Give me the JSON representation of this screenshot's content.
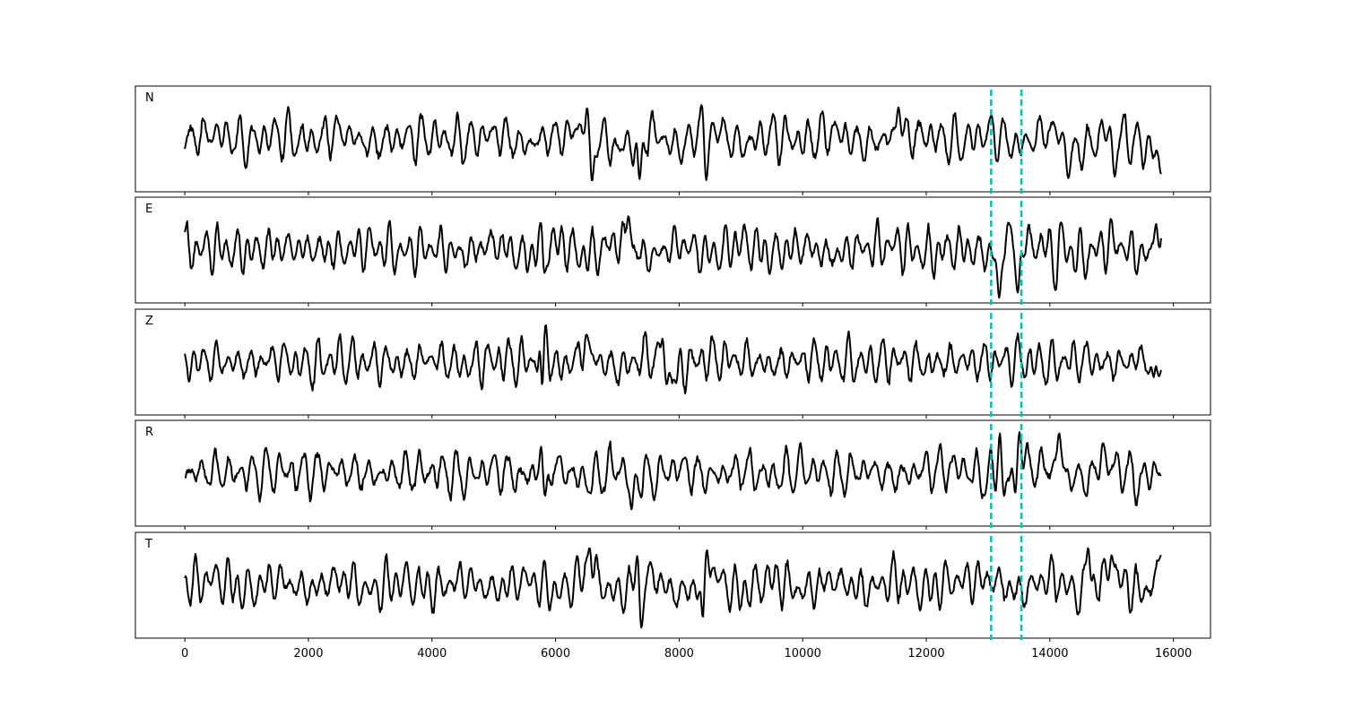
{
  "chart_data": {
    "type": "line",
    "title": "",
    "xlabel": "",
    "ylabel": "",
    "xlim": [
      -800,
      16600
    ],
    "x_ticks": [
      0,
      2000,
      4000,
      6000,
      8000,
      10000,
      12000,
      14000,
      16000
    ],
    "x_tick_labels": [
      "0",
      "2000",
      "4000",
      "6000",
      "8000",
      "10000",
      "12000",
      "14000",
      "16000"
    ],
    "signal_x_range": [
      0,
      15800
    ],
    "markers": [
      13050,
      13540
    ],
    "grid": false,
    "colors": {
      "trace": "#000000",
      "marker": "#00bfbf"
    },
    "panels": [
      {
        "label": "N",
        "ylim": [
          -1,
          1
        ],
        "events": [
          {
            "x": 6520,
            "y": 0.72
          },
          {
            "x": 6590,
            "y": -0.85
          },
          {
            "x": 7360,
            "y": -0.8
          },
          {
            "x": 8380,
            "y": 0.83
          },
          {
            "x": 8440,
            "y": -0.82
          },
          {
            "x": 11550,
            "y": 0.63
          },
          {
            "x": 14300,
            "y": -0.78
          },
          {
            "x": 15050,
            "y": -0.75
          },
          {
            "x": 15800,
            "y": -0.7
          }
        ],
        "series": [
          {
            "x": [
              0,
              500,
              1000,
              1500,
              2000,
              2500,
              3000,
              3500,
              4000,
              4500,
              5000,
              5500,
              6000,
              6500,
              7000,
              7500,
              8000,
              8500,
              9000,
              9500,
              10000,
              10500,
              11000,
              11500,
              12000,
              12500,
              13000,
              13500,
              14000,
              14500,
              15000,
              15500,
              15800
            ],
            "y": [
              0.0,
              0.3,
              -0.2,
              0.25,
              -0.1,
              0.35,
              -0.25,
              0.05,
              0.1,
              -0.15,
              0.3,
              -0.3,
              0.15,
              0.6,
              -0.5,
              0.4,
              -0.45,
              0.7,
              -0.3,
              0.2,
              -0.1,
              0.35,
              -0.25,
              0.1,
              0.2,
              -0.2,
              0.3,
              -0.35,
              0.5,
              -0.6,
              0.5,
              -0.4,
              -0.7
            ]
          }
        ]
      },
      {
        "label": "E",
        "ylim": [
          -1,
          1
        ],
        "events": [
          {
            "x": 5800,
            "y": -0.82
          },
          {
            "x": 5760,
            "y": 0.55
          },
          {
            "x": 7180,
            "y": 0.68
          },
          {
            "x": 13180,
            "y": -0.95
          },
          {
            "x": 13330,
            "y": 0.55
          },
          {
            "x": 13480,
            "y": -0.85
          },
          {
            "x": 14100,
            "y": -0.85
          },
          {
            "x": 14180,
            "y": 0.55
          },
          {
            "x": 15720,
            "y": 0.52
          }
        ],
        "series": [
          {
            "x": [
              0,
              500,
              1000,
              1500,
              2000,
              2500,
              3000,
              3500,
              4000,
              4500,
              5000,
              5500,
              6000,
              6500,
              7000,
              7500,
              8000,
              8500,
              9000,
              9500,
              10000,
              10500,
              11000,
              11500,
              12000,
              12500,
              13000,
              13500,
              14000,
              14500,
              15000,
              15500,
              15800
            ],
            "y": [
              0.0,
              0.1,
              -0.1,
              0.15,
              0.05,
              -0.1,
              0.2,
              -0.15,
              0.1,
              -0.2,
              0.3,
              -0.35,
              0.4,
              -0.3,
              0.45,
              -0.4,
              0.3,
              -0.25,
              0.35,
              -0.2,
              0.2,
              -0.3,
              0.15,
              0.25,
              -0.2,
              0.1,
              -0.2,
              0.4,
              0.2,
              -0.35,
              0.4,
              -0.3,
              -0.25
            ]
          }
        ]
      },
      {
        "label": "Z",
        "ylim": [
          -1,
          1
        ],
        "events": [
          {
            "x": 5770,
            "y": 0.82
          },
          {
            "x": 5800,
            "y": -1.0
          },
          {
            "x": 5840,
            "y": 0.75
          },
          {
            "x": 6500,
            "y": 0.55
          },
          {
            "x": 7740,
            "y": 0.6
          },
          {
            "x": 7800,
            "y": -0.45
          },
          {
            "x": 7950,
            "y": -0.42
          },
          {
            "x": 15680,
            "y": -0.3
          }
        ],
        "series": [
          {
            "x": [
              0,
              500,
              1000,
              1500,
              2000,
              2500,
              3000,
              3500,
              4000,
              4500,
              5000,
              5500,
              6000,
              6500,
              7000,
              7500,
              8000,
              8500,
              9000,
              9500,
              10000,
              10500,
              11000,
              11500,
              12000,
              12500,
              13000,
              13500,
              14000,
              14500,
              15000,
              15500,
              15800
            ],
            "y": [
              0.0,
              0.05,
              -0.1,
              0.15,
              -0.15,
              0.1,
              0.0,
              -0.1,
              0.2,
              -0.15,
              0.1,
              0.05,
              -0.3,
              0.35,
              -0.35,
              0.3,
              -0.2,
              0.2,
              0.1,
              -0.15,
              0.1,
              0.05,
              -0.05,
              0.1,
              -0.1,
              0.05,
              0.0,
              0.1,
              -0.1,
              0.15,
              -0.1,
              0.2,
              -0.1
            ]
          }
        ]
      },
      {
        "label": "R",
        "ylim": [
          -1,
          1
        ],
        "events": [
          {
            "x": 5780,
            "y": 0.75
          },
          {
            "x": 5830,
            "y": -0.45
          },
          {
            "x": 7230,
            "y": -0.72
          },
          {
            "x": 13200,
            "y": 0.97
          },
          {
            "x": 13260,
            "y": -0.45
          },
          {
            "x": 13450,
            "y": -0.55
          },
          {
            "x": 13510,
            "y": 0.82
          },
          {
            "x": 14150,
            "y": 0.8
          },
          {
            "x": 14860,
            "y": 0.6
          }
        ],
        "series": [
          {
            "x": [
              0,
              500,
              1000,
              1500,
              2000,
              2500,
              3000,
              3500,
              4000,
              4500,
              5000,
              5500,
              6000,
              6500,
              7000,
              7500,
              8000,
              8500,
              9000,
              9500,
              10000,
              10500,
              11000,
              11500,
              12000,
              12500,
              13000,
              13500,
              14000,
              14500,
              15000,
              15500,
              15800
            ],
            "y": [
              0.0,
              0.1,
              -0.05,
              0.15,
              0.05,
              0.15,
              -0.1,
              0.05,
              0.1,
              -0.15,
              0.2,
              -0.2,
              0.3,
              -0.35,
              0.3,
              -0.25,
              0.3,
              -0.2,
              0.2,
              -0.15,
              0.2,
              -0.1,
              0.15,
              -0.2,
              0.2,
              0.3,
              -0.3,
              0.4,
              0.3,
              -0.4,
              0.4,
              -0.4,
              0.3
            ]
          }
        ]
      },
      {
        "label": "T",
        "ylim": [
          -1,
          1
        ],
        "events": [
          {
            "x": 6550,
            "y": 0.75
          },
          {
            "x": 7340,
            "y": 0.85
          },
          {
            "x": 7390,
            "y": -0.85
          },
          {
            "x": 8390,
            "y": -0.85
          },
          {
            "x": 8450,
            "y": 0.7
          },
          {
            "x": 14620,
            "y": 0.75
          },
          {
            "x": 15000,
            "y": 0.6
          },
          {
            "x": 15800,
            "y": 0.6
          }
        ],
        "series": [
          {
            "x": [
              0,
              500,
              1000,
              1500,
              2000,
              2500,
              3000,
              3500,
              4000,
              4500,
              5000,
              5500,
              6000,
              6500,
              7000,
              7500,
              8000,
              8500,
              9000,
              9500,
              10000,
              10500,
              11000,
              11500,
              12000,
              12500,
              13000,
              13500,
              14000,
              14500,
              15000,
              15500,
              15800
            ],
            "y": [
              0.0,
              0.35,
              -0.3,
              0.3,
              -0.25,
              0.35,
              -0.3,
              0.2,
              -0.2,
              0.3,
              -0.25,
              0.3,
              -0.35,
              0.5,
              -0.45,
              0.55,
              -0.5,
              0.55,
              -0.4,
              0.35,
              -0.3,
              0.3,
              -0.25,
              0.3,
              -0.2,
              0.25,
              0.3,
              -0.35,
              0.4,
              -0.45,
              0.45,
              -0.4,
              0.6
            ]
          }
        ]
      }
    ]
  }
}
